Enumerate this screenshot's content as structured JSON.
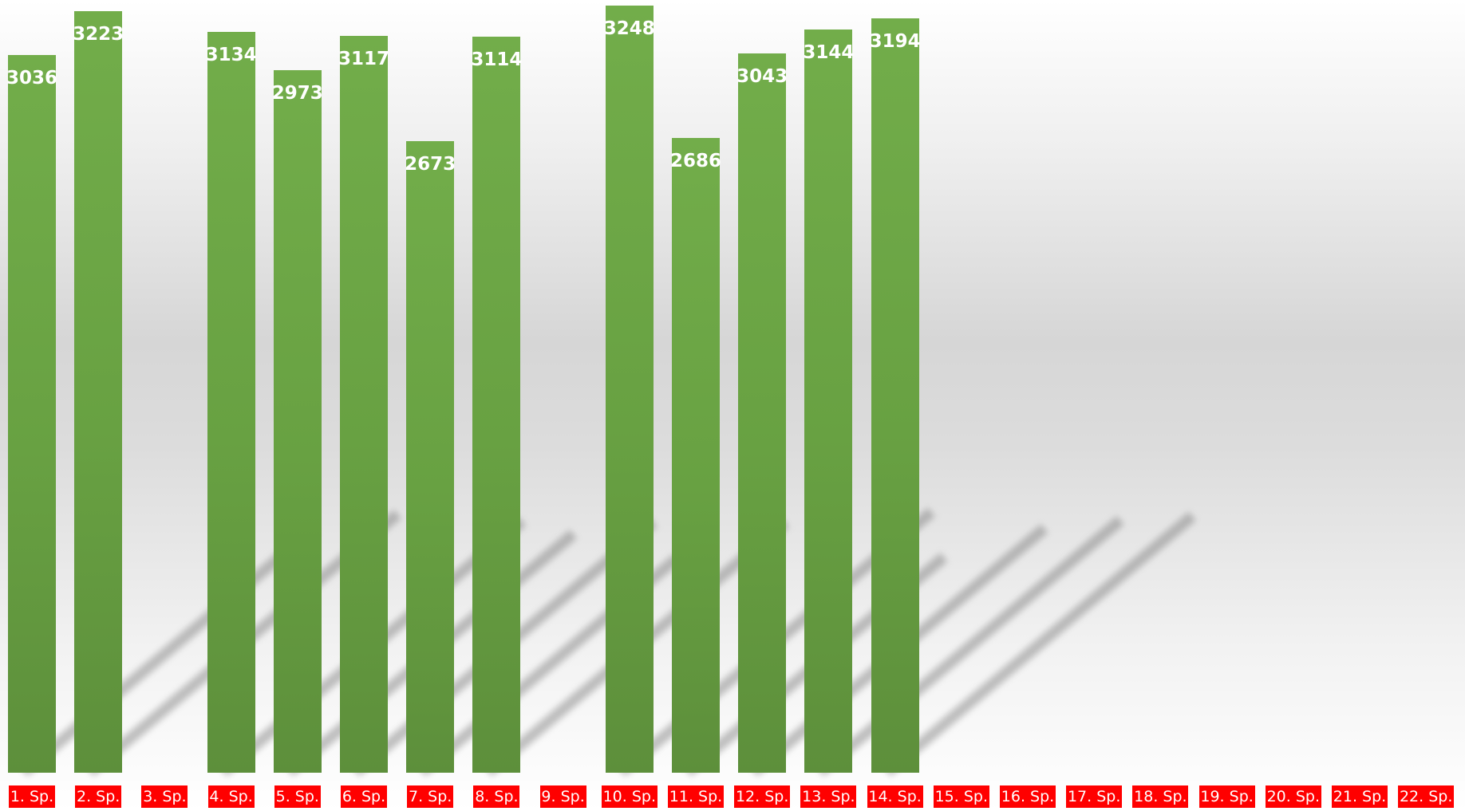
{
  "chart_data": {
    "type": "bar",
    "categories": [
      "1. Sp.",
      "2. Sp.",
      "3. Sp.",
      "4. Sp.",
      "5. Sp.",
      "6. Sp.",
      "7. Sp.",
      "8. Sp.",
      "9. Sp.",
      "10. Sp.",
      "11. Sp.",
      "12. Sp.",
      "13. Sp.",
      "14. Sp.",
      "15. Sp.",
      "16. Sp.",
      "17. Sp.",
      "18. Sp.",
      "19. Sp.",
      "20. Sp.",
      "21. Sp.",
      "22. Sp."
    ],
    "values": [
      3036,
      3223,
      null,
      3134,
      2973,
      3117,
      2673,
      3114,
      null,
      3248,
      2686,
      3043,
      3144,
      3194,
      null,
      null,
      null,
      null,
      null,
      null,
      null,
      null
    ],
    "title": "",
    "xlabel": "",
    "ylabel": "",
    "ylim": [
      0,
      3250
    ],
    "grid": false,
    "legend": "none",
    "colors": {
      "bar": "#70ad47",
      "tick_label_background": "#ff0000",
      "tick_label_text": "#ffffff",
      "value_label_text": "#ffffff"
    }
  }
}
